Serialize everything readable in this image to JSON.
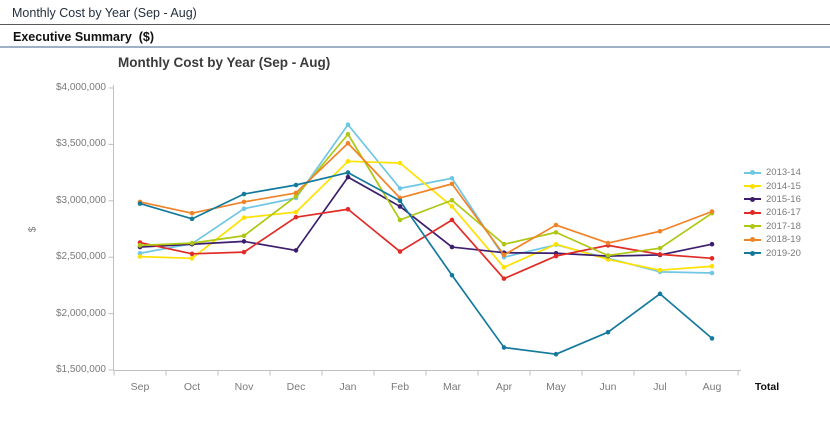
{
  "header": {
    "tab_title": "Monthly Cost by Year (Sep - Aug)",
    "section_title": "Executive Summary  ($)"
  },
  "footer": {
    "total_label": "Total"
  },
  "chart_data": {
    "type": "line",
    "title": "Monthly Cost by Year (Sep - Aug)",
    "xlabel": "",
    "ylabel": "$",
    "categories": [
      "Sep",
      "Oct",
      "Nov",
      "Dec",
      "Jan",
      "Feb",
      "Mar",
      "Apr",
      "May",
      "Jun",
      "Jul",
      "Aug"
    ],
    "ylim": [
      1500000,
      4000000
    ],
    "y_ticks": [
      4000000,
      3500000,
      3000000,
      2500000,
      2000000,
      1500000
    ],
    "y_tick_labels": [
      "$4,000,000",
      "$3,500,000",
      "$3,000,000",
      "$2,500,000",
      "$2,000,000",
      "$1,500,000"
    ],
    "grid": false,
    "legend_position": "right",
    "axis_color": "#bfbfbf",
    "series": [
      {
        "name": "2013-14",
        "color": "#6fc7e3",
        "values": [
          2535000,
          2620000,
          2930000,
          3025000,
          3675000,
          3110000,
          3200000,
          2500000,
          2610000,
          2490000,
          2370000,
          2360000
        ]
      },
      {
        "name": "2014-15",
        "color": "#ffe100",
        "values": [
          2505000,
          2490000,
          2850000,
          2900000,
          3350000,
          3335000,
          2950000,
          2410000,
          2615000,
          2480000,
          2385000,
          2420000
        ]
      },
      {
        "name": "2015-16",
        "color": "#3d1e6d",
        "values": [
          2590000,
          2615000,
          2640000,
          2560000,
          3210000,
          2950000,
          2590000,
          2540000,
          2535000,
          2510000,
          2520000,
          2615000
        ]
      },
      {
        "name": "2016-17",
        "color": "#e12b26",
        "values": [
          2630000,
          2530000,
          2545000,
          2855000,
          2925000,
          2550000,
          2830000,
          2310000,
          2510000,
          2605000,
          2525000,
          2490000
        ]
      },
      {
        "name": "2017-18",
        "color": "#afc712",
        "values": [
          2605000,
          2625000,
          2690000,
          3040000,
          3590000,
          2830000,
          3005000,
          2615000,
          2720000,
          2515000,
          2580000,
          2890000
        ]
      },
      {
        "name": "2018-19",
        "color": "#f18226",
        "values": [
          2990000,
          2890000,
          2990000,
          3070000,
          3510000,
          3025000,
          3150000,
          2520000,
          2785000,
          2625000,
          2730000,
          2905000
        ]
      },
      {
        "name": "2019-20",
        "color": "#147a9d",
        "values": [
          2975000,
          2840000,
          3060000,
          3140000,
          3250000,
          3000000,
          2340000,
          1700000,
          1640000,
          1835000,
          2175000,
          1780000
        ]
      }
    ]
  }
}
